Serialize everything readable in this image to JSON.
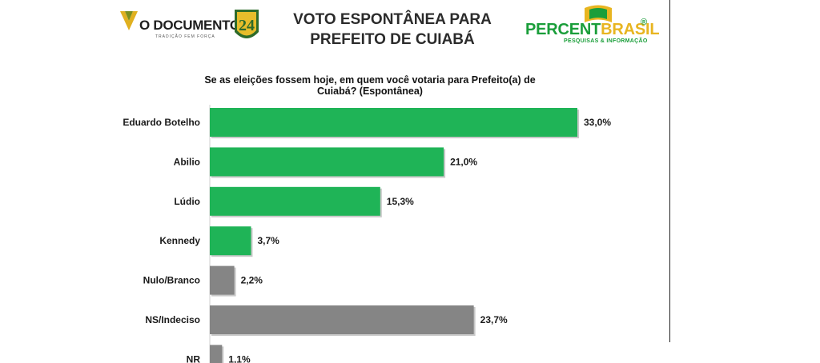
{
  "header": {
    "left_logo": {
      "brand": "O DOCUMENTO",
      "tagline": "TRADIÇÃO FEM FORÇA",
      "badge": "24"
    },
    "title_lines": [
      "VOTO ESPONTÂNEA PARA",
      "PREFEITO DE CUIABÁ"
    ],
    "right_logo": {
      "brand_part1": "PERCENT",
      "brand_part2": "BRASIL",
      "registered": "®",
      "subtitle": "PESQUISAS & INFORMAÇÃO"
    }
  },
  "question": "Se as eleições fossem hoje, em quem você votaria para Prefeito(a) de Cuiabá? (Espontânea)",
  "colors": {
    "green": "#1fb457",
    "gray": "#858585",
    "brand_green": "#1a9e3a",
    "brand_yellow": "#e8b520"
  },
  "chart_data": {
    "type": "bar",
    "orientation": "horizontal",
    "categories": [
      "Eduardo Botelho",
      "Abilio",
      "Lúdio",
      "Kennedy",
      "Nulo/Branco",
      "NS/Indeciso",
      "NR"
    ],
    "values": [
      33.0,
      21.0,
      15.3,
      3.7,
      2.2,
      23.7,
      1.1
    ],
    "value_labels": [
      "33,0%",
      "21,0%",
      "15,3%",
      "3,7%",
      "2,2%",
      "23,7%",
      "1,1%"
    ],
    "bar_colors": [
      "#1fb457",
      "#1fb457",
      "#1fb457",
      "#1fb457",
      "#858585",
      "#858585",
      "#858585"
    ],
    "xlim": [
      0,
      33.0
    ],
    "grid": false,
    "legend": "none"
  }
}
